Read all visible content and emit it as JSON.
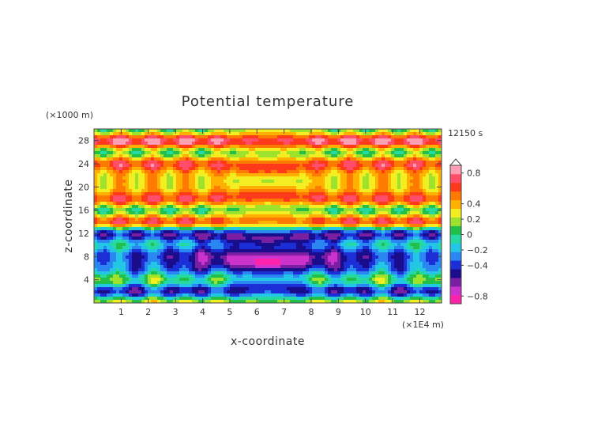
{
  "chart_data": {
    "type": "heatmap",
    "title": "Potential temperature",
    "xlabel": "x-coordinate",
    "ylabel": "z-coordinate",
    "x_unit": "(×1E4 m)",
    "y_unit": "(×1000 m)",
    "time_label": "12150 s",
    "xlim": [
      0,
      12.8
    ],
    "ylim": [
      0,
      30
    ],
    "x_ticks": [
      1,
      2,
      3,
      4,
      5,
      6,
      7,
      8,
      9,
      10,
      11,
      12
    ],
    "y_ticks": [
      4,
      8,
      12,
      16,
      20,
      24,
      28
    ],
    "colorbar": {
      "range": [
        -0.9,
        0.9
      ],
      "tick_values": [
        0.8,
        0.4,
        0.2,
        0,
        -0.2,
        -0.4,
        -0.8
      ],
      "tick_labels": [
        "0.8",
        "0.4",
        "0.2",
        "0",
        "−0.2",
        "−0.4",
        "−0.8"
      ],
      "colors": [
        "#ff22aa",
        "#cc33cc",
        "#7a1fa2",
        "#1a0d8c",
        "#1c2fd6",
        "#2a86f0",
        "#23c7e6",
        "#26d9a0",
        "#22c04a",
        "#9de22d",
        "#f2ee22",
        "#ffb000",
        "#ff7a00",
        "#ff3a1a",
        "#ff4d6a",
        "#ff9fb4"
      ]
    }
  }
}
